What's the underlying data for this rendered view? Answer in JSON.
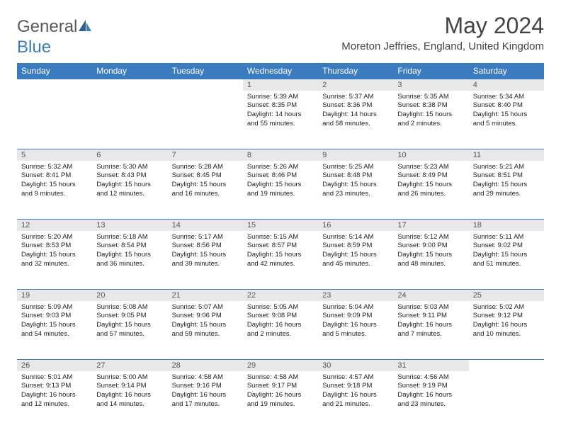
{
  "logo": {
    "text1": "General",
    "text2": "Blue"
  },
  "title": "May 2024",
  "location": "Moreton Jeffries, England, United Kingdom",
  "colors": {
    "header_bg": "#3b7bbf",
    "header_text": "#ffffff",
    "daynum_bg": "#e8e8e8",
    "logo_gray": "#5a5a5a",
    "logo_blue": "#3b7bbf"
  },
  "day_headers": [
    "Sunday",
    "Monday",
    "Tuesday",
    "Wednesday",
    "Thursday",
    "Friday",
    "Saturday"
  ],
  "weeks": [
    [
      null,
      null,
      null,
      {
        "n": "1",
        "sunrise": "5:39 AM",
        "sunset": "8:35 PM",
        "daylight": "14 hours and 55 minutes."
      },
      {
        "n": "2",
        "sunrise": "5:37 AM",
        "sunset": "8:36 PM",
        "daylight": "14 hours and 58 minutes."
      },
      {
        "n": "3",
        "sunrise": "5:35 AM",
        "sunset": "8:38 PM",
        "daylight": "15 hours and 2 minutes."
      },
      {
        "n": "4",
        "sunrise": "5:34 AM",
        "sunset": "8:40 PM",
        "daylight": "15 hours and 5 minutes."
      }
    ],
    [
      {
        "n": "5",
        "sunrise": "5:32 AM",
        "sunset": "8:41 PM",
        "daylight": "15 hours and 9 minutes."
      },
      {
        "n": "6",
        "sunrise": "5:30 AM",
        "sunset": "8:43 PM",
        "daylight": "15 hours and 12 minutes."
      },
      {
        "n": "7",
        "sunrise": "5:28 AM",
        "sunset": "8:45 PM",
        "daylight": "15 hours and 16 minutes."
      },
      {
        "n": "8",
        "sunrise": "5:26 AM",
        "sunset": "8:46 PM",
        "daylight": "15 hours and 19 minutes."
      },
      {
        "n": "9",
        "sunrise": "5:25 AM",
        "sunset": "8:48 PM",
        "daylight": "15 hours and 23 minutes."
      },
      {
        "n": "10",
        "sunrise": "5:23 AM",
        "sunset": "8:49 PM",
        "daylight": "15 hours and 26 minutes."
      },
      {
        "n": "11",
        "sunrise": "5:21 AM",
        "sunset": "8:51 PM",
        "daylight": "15 hours and 29 minutes."
      }
    ],
    [
      {
        "n": "12",
        "sunrise": "5:20 AM",
        "sunset": "8:53 PM",
        "daylight": "15 hours and 32 minutes."
      },
      {
        "n": "13",
        "sunrise": "5:18 AM",
        "sunset": "8:54 PM",
        "daylight": "15 hours and 36 minutes."
      },
      {
        "n": "14",
        "sunrise": "5:17 AM",
        "sunset": "8:56 PM",
        "daylight": "15 hours and 39 minutes."
      },
      {
        "n": "15",
        "sunrise": "5:15 AM",
        "sunset": "8:57 PM",
        "daylight": "15 hours and 42 minutes."
      },
      {
        "n": "16",
        "sunrise": "5:14 AM",
        "sunset": "8:59 PM",
        "daylight": "15 hours and 45 minutes."
      },
      {
        "n": "17",
        "sunrise": "5:12 AM",
        "sunset": "9:00 PM",
        "daylight": "15 hours and 48 minutes."
      },
      {
        "n": "18",
        "sunrise": "5:11 AM",
        "sunset": "9:02 PM",
        "daylight": "15 hours and 51 minutes."
      }
    ],
    [
      {
        "n": "19",
        "sunrise": "5:09 AM",
        "sunset": "9:03 PM",
        "daylight": "15 hours and 54 minutes."
      },
      {
        "n": "20",
        "sunrise": "5:08 AM",
        "sunset": "9:05 PM",
        "daylight": "15 hours and 57 minutes."
      },
      {
        "n": "21",
        "sunrise": "5:07 AM",
        "sunset": "9:06 PM",
        "daylight": "15 hours and 59 minutes."
      },
      {
        "n": "22",
        "sunrise": "5:05 AM",
        "sunset": "9:08 PM",
        "daylight": "16 hours and 2 minutes."
      },
      {
        "n": "23",
        "sunrise": "5:04 AM",
        "sunset": "9:09 PM",
        "daylight": "16 hours and 5 minutes."
      },
      {
        "n": "24",
        "sunrise": "5:03 AM",
        "sunset": "9:11 PM",
        "daylight": "16 hours and 7 minutes."
      },
      {
        "n": "25",
        "sunrise": "5:02 AM",
        "sunset": "9:12 PM",
        "daylight": "16 hours and 10 minutes."
      }
    ],
    [
      {
        "n": "26",
        "sunrise": "5:01 AM",
        "sunset": "9:13 PM",
        "daylight": "16 hours and 12 minutes."
      },
      {
        "n": "27",
        "sunrise": "5:00 AM",
        "sunset": "9:14 PM",
        "daylight": "16 hours and 14 minutes."
      },
      {
        "n": "28",
        "sunrise": "4:58 AM",
        "sunset": "9:16 PM",
        "daylight": "16 hours and 17 minutes."
      },
      {
        "n": "29",
        "sunrise": "4:58 AM",
        "sunset": "9:17 PM",
        "daylight": "16 hours and 19 minutes."
      },
      {
        "n": "30",
        "sunrise": "4:57 AM",
        "sunset": "9:18 PM",
        "daylight": "16 hours and 21 minutes."
      },
      {
        "n": "31",
        "sunrise": "4:56 AM",
        "sunset": "9:19 PM",
        "daylight": "16 hours and 23 minutes."
      },
      null
    ]
  ],
  "labels": {
    "sunrise": "Sunrise: ",
    "sunset": "Sunset: ",
    "daylight": "Daylight: "
  }
}
